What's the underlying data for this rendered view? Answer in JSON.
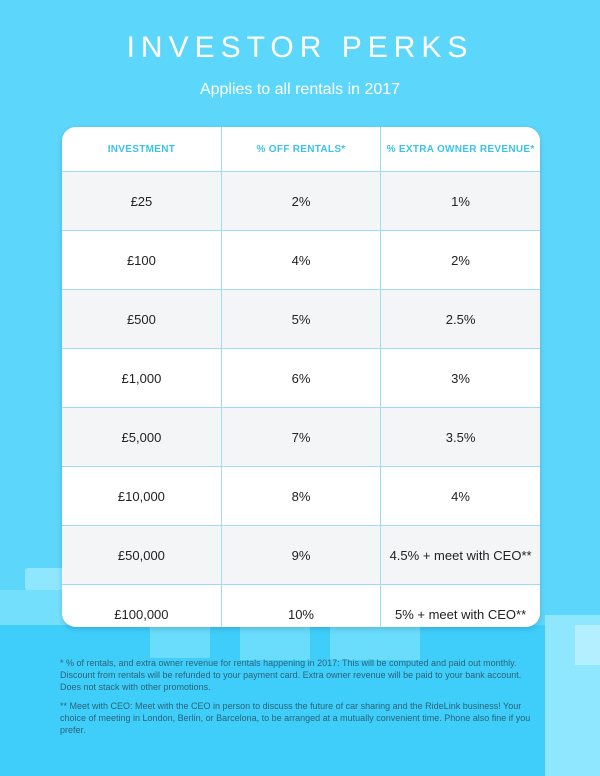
{
  "header": {
    "title": "INVESTOR PERKS",
    "subtitle": "Applies to all rentals in 2017"
  },
  "table": {
    "headers": [
      "INVESTMENT",
      "% OFF RENTALS*",
      "% EXTRA OWNER REVENUE*"
    ],
    "rows": [
      [
        "£25",
        "2%",
        "1%"
      ],
      [
        "£100",
        "4%",
        "2%"
      ],
      [
        "£500",
        "5%",
        "2.5%"
      ],
      [
        "£1,000",
        "6%",
        "3%"
      ],
      [
        "£5,000",
        "7%",
        "3.5%"
      ],
      [
        "£10,000",
        "8%",
        "4%"
      ],
      [
        "£50,000",
        "9%",
        "4.5% + meet with CEO**"
      ],
      [
        "£100,000",
        "10%",
        "5% + meet with CEO**"
      ]
    ]
  },
  "footnotes": [
    "* % of rentals, and extra owner revenue for rentals happening in 2017: This will be computed and paid out monthly. Discount from rentals will be refunded to your payment card. Extra owner revenue will be paid to your bank account. Does not stack with other promotions.",
    "** Meet with CEO: Meet with the CEO in person to discuss the future of car sharing and the RideLink business! Your choice of meeting in London, Berlin, or Barcelona, to be arranged at a mutually convenient time. Phone also fine if you prefer."
  ],
  "colors": {
    "background": "#5dd6fb",
    "accent_header_text": "#3bc3eb",
    "row_alt": "#f4f5f7",
    "grid_line": "#9fdcf0"
  }
}
